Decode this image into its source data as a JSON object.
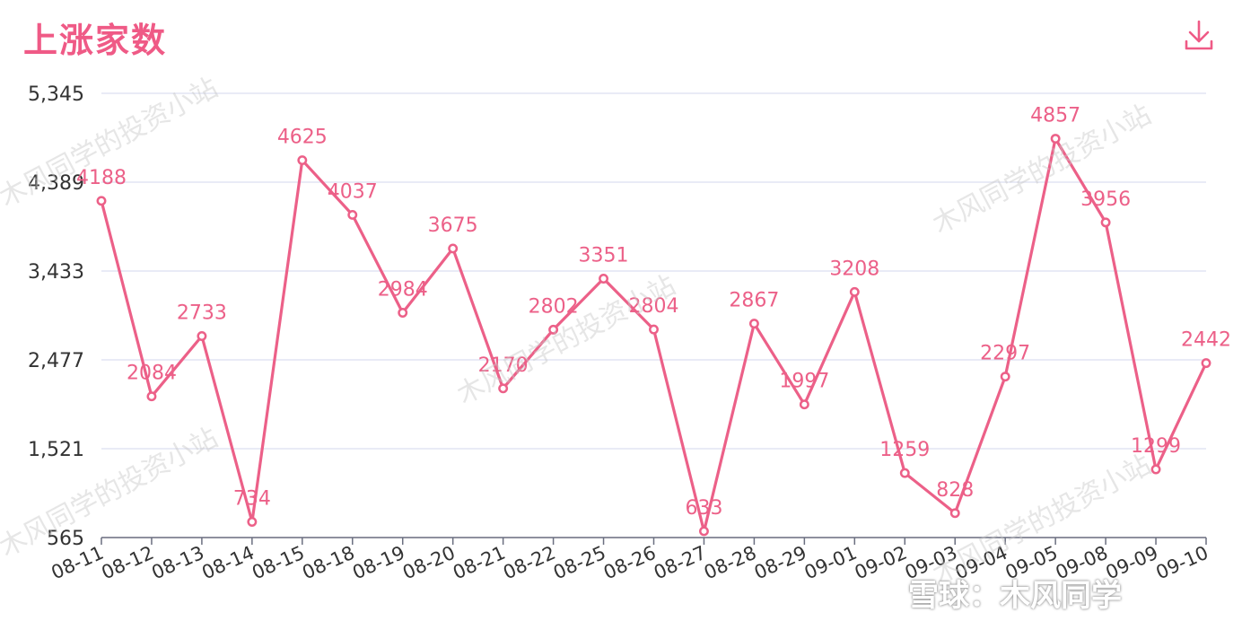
{
  "header": {
    "title": "上涨家数",
    "download_icon": "download-icon"
  },
  "watermark": {
    "text": "木风同学的投资小站"
  },
  "brand": {
    "text": "雪球：木风同学"
  },
  "colors": {
    "accent": "#ef5a86",
    "line": "#ec6088",
    "grid": "#dcdff0",
    "axis_text": "#333333"
  },
  "chart_data": {
    "type": "line",
    "title": "上涨家数",
    "categories": [
      "08-11",
      "08-12",
      "08-13",
      "08-14",
      "08-15",
      "08-18",
      "08-19",
      "08-20",
      "08-21",
      "08-22",
      "08-25",
      "08-26",
      "08-27",
      "08-28",
      "08-29",
      "09-01",
      "09-02",
      "09-03",
      "09-04",
      "09-05",
      "09-08",
      "09-09",
      "09-10"
    ],
    "values": [
      4188,
      2084,
      2733,
      734,
      4625,
      4037,
      2984,
      3675,
      2170,
      2802,
      3351,
      2804,
      633,
      2867,
      1997,
      3208,
      1259,
      828,
      2297,
      4857,
      3956,
      1299,
      2442
    ],
    "yticks": [
      "5,345",
      "4,389",
      "3,433",
      "2,477",
      "1,521",
      "565"
    ],
    "ylim": [
      565,
      5345
    ],
    "grid": true,
    "data_labels": true
  }
}
